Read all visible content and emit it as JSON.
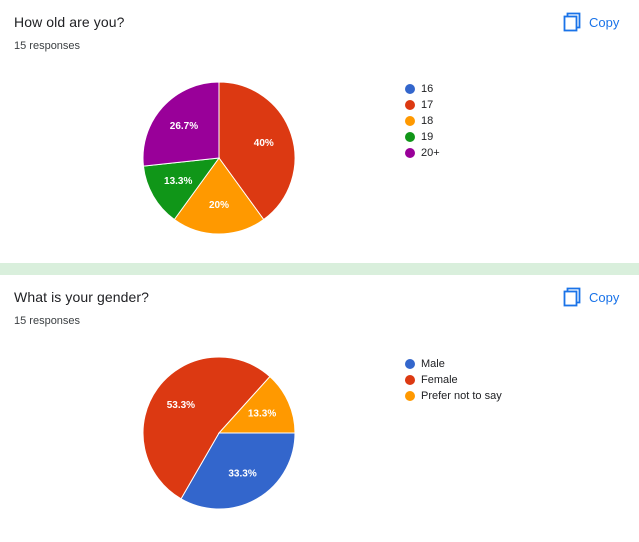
{
  "copy_label": "Copy",
  "icons": {
    "copy": "copy-icon"
  },
  "chart_data": [
    {
      "type": "pie",
      "title": "How old are you?",
      "subtitle": "15 responses",
      "legend_position": "right",
      "start_angle_deg": 0,
      "series": [
        {
          "name": "16",
          "value": 0,
          "label": "",
          "color": "#3366cc"
        },
        {
          "name": "17",
          "value": 40.0,
          "label": "40%",
          "color": "#dc3912"
        },
        {
          "name": "18",
          "value": 20.0,
          "label": "20%",
          "color": "#ff9900"
        },
        {
          "name": "19",
          "value": 13.3,
          "label": "13.3%",
          "color": "#109618"
        },
        {
          "name": "20+",
          "value": 26.7,
          "label": "26.7%",
          "color": "#990099"
        }
      ]
    },
    {
      "type": "pie",
      "title": "What is your gender?",
      "subtitle": "15 responses",
      "legend_position": "right",
      "start_angle_deg": 90,
      "series": [
        {
          "name": "Male",
          "value": 33.3,
          "label": "33.3%",
          "color": "#3366cc"
        },
        {
          "name": "Female",
          "value": 53.3,
          "label": "53.3%",
          "color": "#dc3912"
        },
        {
          "name": "Prefer not to say",
          "value": 13.3,
          "label": "13.3%",
          "color": "#ff9900"
        }
      ]
    }
  ]
}
